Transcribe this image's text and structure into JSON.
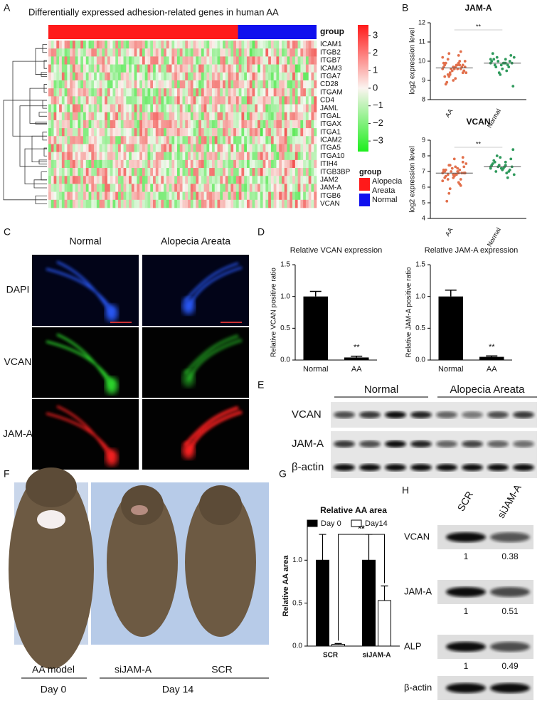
{
  "panel_labels": [
    "A",
    "B",
    "C",
    "D",
    "E",
    "F",
    "G",
    "H"
  ],
  "heatmap": {
    "title": "Differentially expressed adhesion-related genes in human AA",
    "group_label": "group",
    "genes": [
      "ICAM1",
      "ITGB2",
      "ITGB7",
      "ICAM3",
      "ITGA7",
      "CD28",
      "ITGAM",
      "CD4",
      "JAML",
      "ITGAL",
      "ITGAX",
      "ITGA1",
      "ICAM2",
      "ITGA5",
      "ITGA10",
      "ITIH4",
      "ITGB3BP",
      "JAM2",
      "JAM-A",
      "ITGB6",
      "VCAN"
    ],
    "scale_ticks": [
      3,
      2,
      1,
      0,
      {
        "value": -1,
        "label": "−1"
      },
      {
        "value": -2,
        "label": "−2"
      },
      {
        "value": -3,
        "label": "−3"
      }
    ],
    "scale_lim": [
      -3.6,
      3.6
    ],
    "legend_title": "group",
    "groups": [
      {
        "name": "Alopecia Areata",
        "color": "#ff1a1a"
      },
      {
        "name": "Normal",
        "color": "#1010ee"
      }
    ]
  },
  "chart_data": [
    {
      "type": "dot",
      "title": "JAM-A",
      "y_label": "log2 expression level",
      "categories": [
        "AA",
        "Normal"
      ],
      "colors": [
        "#e2704c",
        "#2f9a5c"
      ],
      "values": [
        [
          9.6,
          9.8,
          10.1,
          9.4,
          9.7,
          9.9,
          10.3,
          9.2,
          9.5,
          9.6,
          9.8,
          10.0,
          9.3,
          9.7,
          9.1,
          9.9,
          10.5,
          9.6,
          9.4,
          9.8,
          8.9,
          9.7,
          9.5,
          10.2,
          9.6,
          9.3,
          9.8,
          9.0,
          9.7,
          9.9,
          10.4,
          9.5,
          9.6,
          9.2,
          9.8,
          9.4,
          10.0,
          9.7,
          8.8,
          9.6
        ],
        [
          9.9,
          10.1,
          9.7,
          10.3,
          9.8,
          10.0,
          9.5,
          10.2,
          9.9,
          9.6,
          10.4,
          9.8,
          10.0,
          8.7,
          9.9,
          10.1,
          9.7,
          9.4,
          10.2,
          9.9,
          9.8,
          10.0,
          9.3,
          10.1,
          9.9
        ]
      ],
      "means": [
        9.65,
        9.9
      ],
      "annotation": "**",
      "ylim": [
        8,
        12
      ],
      "yticks": [
        8,
        9,
        10,
        11,
        12
      ]
    },
    {
      "type": "dot",
      "title": "VCAN",
      "y_label": "log2 expression level",
      "categories": [
        "AA",
        "Normal"
      ],
      "colors": [
        "#e2704c",
        "#2f9a5c"
      ],
      "values": [
        [
          6.9,
          7.2,
          6.5,
          7.6,
          6.8,
          7.0,
          6.3,
          7.4,
          6.9,
          7.8,
          6.6,
          7.1,
          5.9,
          6.9,
          7.3,
          6.7,
          6.1,
          7.0,
          7.5,
          6.8,
          5.1,
          6.9,
          7.2,
          6.4,
          7.0,
          6.8,
          7.9,
          6.6,
          7.1,
          6.9,
          5.6,
          7.3,
          6.7,
          7.0,
          6.2,
          7.4,
          6.9,
          6.8,
          7.1,
          6.5
        ],
        [
          7.3,
          7.6,
          7.0,
          7.8,
          7.2,
          7.4,
          6.9,
          8.0,
          7.3,
          7.1,
          7.5,
          6.6,
          7.3,
          8.4,
          7.2,
          7.7,
          7.0,
          7.4,
          6.8,
          7.3,
          7.6,
          7.1,
          7.9,
          7.2,
          7.4
        ]
      ],
      "means": [
        6.9,
        7.3
      ],
      "annotation": "**",
      "ylim": [
        4,
        9
      ],
      "yticks": [
        4,
        5,
        6,
        7,
        8,
        9
      ]
    },
    {
      "type": "bar",
      "title": "Relative VCAN expression",
      "y_label": "Relative VCAN positive ratio",
      "categories": [
        "Normal",
        "AA"
      ],
      "values": [
        1.0,
        0.04
      ],
      "errors": [
        0.08,
        0.02
      ],
      "color": "#000000",
      "annotation": "**",
      "ylim": [
        0,
        1.5
      ],
      "yticks": [
        {
          "value": 0,
          "label": "0.0"
        },
        {
          "value": 0.5,
          "label": "0.5"
        },
        {
          "value": 1,
          "label": "1.0"
        },
        {
          "value": 1.5,
          "label": "1.5"
        }
      ]
    },
    {
      "type": "bar",
      "title": "Relative JAM-A expression",
      "y_label": "Relative JAM-A positive ratio",
      "categories": [
        "Normal",
        "AA"
      ],
      "values": [
        1.0,
        0.05
      ],
      "errors": [
        0.1,
        0.015
      ],
      "color": "#000000",
      "annotation": "**",
      "ylim": [
        0,
        1.5
      ],
      "yticks": [
        {
          "value": 0,
          "label": "0.0"
        },
        {
          "value": 0.5,
          "label": "0.5"
        },
        {
          "value": 1,
          "label": "1.0"
        },
        {
          "value": 1.5,
          "label": "1.5"
        }
      ]
    },
    {
      "type": "grouped_bar",
      "title": "Relative AA area",
      "y_label": "Relative AA area",
      "categories": [
        "SCR",
        "siJAM-A"
      ],
      "series": [
        {
          "name": "Day 0",
          "color": "#000000",
          "values": [
            1.0,
            1.0
          ],
          "errors": [
            0.3,
            0.3
          ]
        },
        {
          "name": "Day14",
          "color": "#ffffff",
          "values": [
            0.02,
            0.53
          ],
          "errors": [
            0.01,
            0.17
          ]
        }
      ],
      "annotation": "**",
      "ylim": [
        0,
        1.4
      ],
      "yticks": [
        {
          "value": 0,
          "label": "0.0"
        },
        {
          "value": 0.5,
          "label": "0.5"
        },
        {
          "value": 1,
          "label": "1.0"
        }
      ]
    }
  ],
  "immunofluorescence": {
    "columns": [
      "Normal",
      "Alopecia Areata"
    ],
    "rows": [
      "DAPI",
      "VCAN",
      "JAM-A"
    ]
  },
  "western_blot_E": {
    "groups": [
      "Normal",
      "Alopecia Areata"
    ],
    "rows": [
      "VCAN",
      "JAM-A",
      "β-actin"
    ]
  },
  "mouse_photos": {
    "labels": [
      "AA model",
      "siJAM-A",
      "SCR"
    ],
    "days": [
      "Day 0",
      "Day 14"
    ]
  },
  "western_blot_H": {
    "columns": [
      "SCR",
      "siJAM-A"
    ],
    "rows": [
      {
        "name": "VCAN",
        "ratios": [
          1,
          0.38
        ]
      },
      {
        "name": "JAM-A",
        "ratios": [
          1,
          0.51
        ]
      },
      {
        "name": "ALP",
        "ratios": [
          1,
          0.49
        ]
      },
      {
        "name": "β-actin"
      }
    ]
  }
}
